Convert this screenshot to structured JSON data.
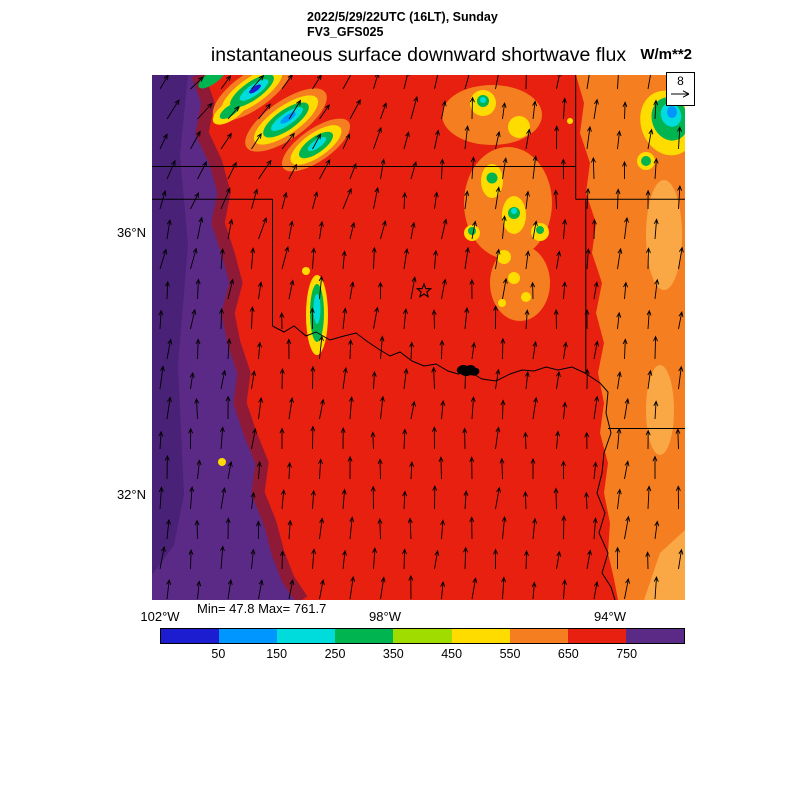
{
  "header": {
    "date_line": "2022/5/29/22UTC (16LT), Sunday",
    "model_line": "FV3_GFS025",
    "title": "instantaneous surface downward shortwave flux",
    "units_label": "W/m**2"
  },
  "wind_ref": {
    "value": "8"
  },
  "axes": {
    "lat_labels": [
      "36°N",
      "32°N"
    ],
    "lon_labels": [
      "102°W",
      "98°W",
      "94°W"
    ]
  },
  "stats": {
    "minmax_label": "Min= 47.8 Max= 761.7"
  },
  "colorbar": {
    "tick_labels": [
      "50",
      "150",
      "250",
      "350",
      "450",
      "550",
      "650",
      "750"
    ],
    "colors": [
      "#1C1CD0",
      "#0096FF",
      "#00DCDC",
      "#00B450",
      "#A0DC00",
      "#FFDC00",
      "#F57E20",
      "#E8200F",
      "#5B2A86"
    ]
  },
  "chart_data": {
    "type": "heatmap",
    "title": "instantaneous surface downward shortwave flux",
    "datetime": "2022/5/29/22UTC (16LT), Sunday",
    "model": "FV3_GFS025",
    "units": "W/m**2",
    "value_min": 47.8,
    "value_max": 761.7,
    "contour_levels": [
      50,
      150,
      250,
      350,
      450,
      550,
      650,
      750
    ],
    "palette": [
      "#1C1CD0",
      "#0096FF",
      "#00DCDC",
      "#00B450",
      "#A0DC00",
      "#FFDC00",
      "#F57E20",
      "#E8200F",
      "#5B2A86"
    ],
    "band_ranges": [
      "<50",
      "50-150",
      "150-250",
      "250-350",
      "350-450",
      "450-550",
      "550-650",
      "650-750",
      ">750"
    ],
    "x_axis": {
      "ticks": [
        "102°W",
        "98°W",
        "94°W"
      ]
    },
    "y_axis": {
      "ticks": [
        "36°N",
        "32°N"
      ]
    },
    "wind_reference_value": 8,
    "field_regions": [
      {
        "area": "west strip of map",
        "flux_band": ">750 (purple)"
      },
      {
        "area": "central (most of Texas / Oklahoma)",
        "flux_band": "650-750 (red)"
      },
      {
        "area": "east (eastern Oklahoma / east Texas)",
        "flux_band": "550-650 (orange)"
      },
      {
        "area": "scattered cloud patches (northwest band, central Oklahoma, northeast corner)",
        "flux_band": "50-550 (yellow/green/cyan cores)"
      }
    ],
    "wind_field": "arrows point roughly south-to-north, veering northeast over the northwest cloud band",
    "colors": {
      "red": "#E8200F",
      "orange": "#F57E20",
      "light_orange": "#F9A845",
      "purple": "#5B2A86",
      "dark_purple": "#472073",
      "maroon": "#8E1A38",
      "yellow": "#FFDC00",
      "green": "#00B450",
      "cyan": "#00DCDC",
      "blue": "#0096FF",
      "deep_blue": "#1C1CD0",
      "border": "#000000"
    }
  }
}
